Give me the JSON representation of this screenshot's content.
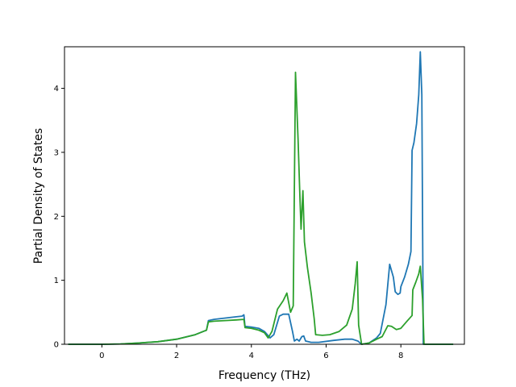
{
  "chart_data": {
    "type": "line",
    "title": "",
    "xlabel": "Frequency (THz)",
    "ylabel": "Partial Density of States",
    "xlim": [
      -1.0,
      9.7
    ],
    "ylim": [
      0,
      4.65
    ],
    "xticks": [
      0,
      2,
      4,
      6,
      8
    ],
    "xtick_labels": [
      "0",
      "2",
      "4",
      "6",
      "8"
    ],
    "yticks": [
      0,
      1,
      2,
      3,
      4
    ],
    "ytick_labels": [
      "0",
      "1",
      "2",
      "3",
      "4"
    ],
    "grid": false,
    "legend": "none",
    "series": [
      {
        "color": "#1f77b4",
        "points": [
          [
            -0.9,
            0
          ],
          [
            0,
            0
          ],
          [
            0.5,
            0.005
          ],
          [
            1.0,
            0.02
          ],
          [
            1.5,
            0.04
          ],
          [
            2.0,
            0.08
          ],
          [
            2.5,
            0.15
          ],
          [
            2.8,
            0.22
          ],
          [
            2.85,
            0.37
          ],
          [
            3.0,
            0.39
          ],
          [
            3.3,
            0.41
          ],
          [
            3.6,
            0.43
          ],
          [
            3.75,
            0.44
          ],
          [
            3.8,
            0.46
          ],
          [
            3.83,
            0.28
          ],
          [
            4.0,
            0.27
          ],
          [
            4.2,
            0.25
          ],
          [
            4.35,
            0.2
          ],
          [
            4.5,
            0.1
          ],
          [
            4.6,
            0.15
          ],
          [
            4.75,
            0.44
          ],
          [
            4.85,
            0.47
          ],
          [
            5.0,
            0.47
          ],
          [
            5.1,
            0.2
          ],
          [
            5.15,
            0.05
          ],
          [
            5.22,
            0.08
          ],
          [
            5.28,
            0.05
          ],
          [
            5.35,
            0.12
          ],
          [
            5.4,
            0.13
          ],
          [
            5.45,
            0.05
          ],
          [
            5.6,
            0.03
          ],
          [
            5.8,
            0.03
          ],
          [
            6.2,
            0.06
          ],
          [
            6.5,
            0.08
          ],
          [
            6.7,
            0.08
          ],
          [
            6.85,
            0.05
          ],
          [
            6.95,
            0
          ],
          [
            7.15,
            0.02
          ],
          [
            7.35,
            0.1
          ],
          [
            7.45,
            0.17
          ],
          [
            7.6,
            0.62
          ],
          [
            7.7,
            1.25
          ],
          [
            7.8,
            1.05
          ],
          [
            7.85,
            0.82
          ],
          [
            7.92,
            0.78
          ],
          [
            7.98,
            0.8
          ],
          [
            8.0,
            0.9
          ],
          [
            8.1,
            1.05
          ],
          [
            8.2,
            1.25
          ],
          [
            8.27,
            1.45
          ],
          [
            8.3,
            3.03
          ],
          [
            8.35,
            3.15
          ],
          [
            8.42,
            3.45
          ],
          [
            8.48,
            3.9
          ],
          [
            8.52,
            4.57
          ],
          [
            8.56,
            3.9
          ],
          [
            8.6,
            0
          ],
          [
            9.4,
            0
          ]
        ]
      },
      {
        "color": "#2ca02c",
        "points": [
          [
            -0.9,
            0
          ],
          [
            0,
            0
          ],
          [
            0.5,
            0.005
          ],
          [
            1.0,
            0.02
          ],
          [
            1.5,
            0.04
          ],
          [
            2.0,
            0.08
          ],
          [
            2.5,
            0.15
          ],
          [
            2.8,
            0.22
          ],
          [
            2.85,
            0.35
          ],
          [
            3.0,
            0.36
          ],
          [
            3.3,
            0.37
          ],
          [
            3.6,
            0.38
          ],
          [
            3.8,
            0.39
          ],
          [
            3.83,
            0.26
          ],
          [
            4.0,
            0.25
          ],
          [
            4.2,
            0.22
          ],
          [
            4.35,
            0.18
          ],
          [
            4.45,
            0.1
          ],
          [
            4.55,
            0.2
          ],
          [
            4.7,
            0.55
          ],
          [
            4.85,
            0.68
          ],
          [
            4.95,
            0.8
          ],
          [
            5.05,
            0.5
          ],
          [
            5.12,
            0.6
          ],
          [
            5.18,
            4.25
          ],
          [
            5.25,
            3.2
          ],
          [
            5.3,
            2.3
          ],
          [
            5.33,
            1.8
          ],
          [
            5.38,
            2.4
          ],
          [
            5.42,
            1.6
          ],
          [
            5.5,
            1.2
          ],
          [
            5.6,
            0.8
          ],
          [
            5.68,
            0.4
          ],
          [
            5.72,
            0.15
          ],
          [
            5.9,
            0.14
          ],
          [
            6.1,
            0.15
          ],
          [
            6.35,
            0.2
          ],
          [
            6.55,
            0.3
          ],
          [
            6.7,
            0.55
          ],
          [
            6.78,
            0.95
          ],
          [
            6.83,
            1.29
          ],
          [
            6.87,
            0.3
          ],
          [
            6.95,
            0
          ],
          [
            7.15,
            0.02
          ],
          [
            7.35,
            0.08
          ],
          [
            7.5,
            0.12
          ],
          [
            7.65,
            0.29
          ],
          [
            7.75,
            0.28
          ],
          [
            7.88,
            0.23
          ],
          [
            8.0,
            0.25
          ],
          [
            8.15,
            0.35
          ],
          [
            8.3,
            0.45
          ],
          [
            8.32,
            0.85
          ],
          [
            8.4,
            0.97
          ],
          [
            8.48,
            1.1
          ],
          [
            8.52,
            1.22
          ],
          [
            8.58,
            0.7
          ],
          [
            8.62,
            0
          ],
          [
            9.4,
            0
          ]
        ]
      }
    ]
  }
}
